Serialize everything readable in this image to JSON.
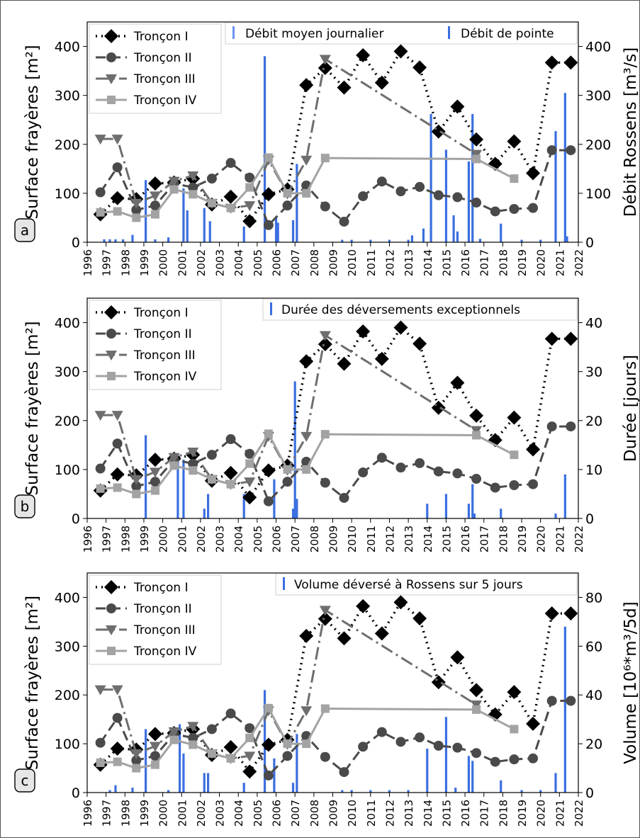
{
  "common": {
    "years": [
      "1996",
      "1997",
      "1998",
      "1999",
      "2000",
      "2001",
      "2002",
      "2003",
      "2004",
      "2005",
      "2006",
      "2007",
      "2008",
      "2009",
      "2010",
      "2011",
      "2012",
      "2013",
      "2014",
      "2015",
      "2016",
      "2017",
      "2018",
      "2019",
      "2020",
      "2021",
      "2022"
    ],
    "left_ylabel": "Surface frayères [m²]",
    "left_yticks": [
      "0",
      "100",
      "200",
      "300",
      "400"
    ],
    "series_names": [
      "Tronçon I",
      "Tronçon II",
      "Tronçon III",
      "Tronçon IV"
    ]
  },
  "chart_data": [
    {
      "type": "line",
      "panel_label": "a",
      "title": "",
      "xlabel": "",
      "ylabel": "Surface frayères [m²]",
      "ylim": [
        0,
        450
      ],
      "xlim": [
        1996,
        2022
      ],
      "y2label": "Débit Rossens [m³/s]",
      "y2lim": [
        0,
        450
      ],
      "y2ticks": [
        "0",
        "100",
        "200",
        "300",
        "400"
      ],
      "bar_legend": [
        "Débit moyen journalier",
        "Débit de pointe"
      ],
      "series": [
        {
          "name": "Tronçon I",
          "x": [
            1996.7,
            1997.6,
            1998.6,
            1999.6,
            2000.6,
            2001.6,
            2002.6,
            2003.6,
            2004.6,
            2005.6,
            2006.6,
            2007.6,
            2008.6,
            2009.6,
            2010.6,
            2011.6,
            2012.6,
            2013.6,
            2014.6,
            2015.6,
            2016.6,
            2017.6,
            2018.6,
            2019.6,
            2020.6,
            2021.6
          ],
          "y": [
            57,
            90,
            88,
            120,
            122,
            130,
            77,
            93,
            43,
            98,
            108,
            321,
            356,
            316,
            382,
            326,
            390,
            357,
            226,
            277,
            210,
            160,
            206,
            141,
            367,
            367
          ]
        },
        {
          "name": "Tronçon II",
          "x": [
            1996.7,
            1997.6,
            1998.6,
            1999.6,
            2000.6,
            2001.6,
            2002.6,
            2003.6,
            2004.6,
            2005.6,
            2006.6,
            2007.6,
            2008.6,
            2009.6,
            2010.6,
            2011.6,
            2012.6,
            2013.6,
            2014.6,
            2015.6,
            2016.6,
            2017.6,
            2018.6,
            2019.6,
            2020.6,
            2021.6
          ],
          "y": [
            102,
            153,
            66,
            75,
            120,
            112,
            130,
            162,
            132,
            35,
            75,
            116,
            73,
            42,
            94,
            124,
            104,
            113,
            96,
            92,
            81,
            63,
            68,
            70,
            188,
            188
          ]
        },
        {
          "name": "Tronçon III",
          "x": [
            1996.7,
            1997.6,
            1998.6,
            1999.6,
            2000.6,
            2001.6,
            2002.6,
            2003.6,
            2004.6,
            2005.6,
            2006.6,
            2007.6,
            2008.6,
            2016.6
          ],
          "y": [
            211,
            211,
            80,
            95,
            125,
            136,
            80,
            70,
            75,
            168,
            99,
            168,
            374,
            180
          ]
        },
        {
          "name": "Tronçon IV",
          "x": [
            1996.7,
            1997.6,
            1998.6,
            1999.6,
            2000.6,
            2001.6,
            2002.6,
            2003.6,
            2004.6,
            2005.6,
            2006.6,
            2007.6,
            2008.6,
            2016.6,
            2018.6
          ],
          "y": [
            61,
            63,
            50,
            57,
            108,
            98,
            80,
            70,
            112,
            173,
            100,
            100,
            172,
            170,
            130
          ]
        }
      ],
      "bars": [
        {
          "x": 1996.9,
          "y": 6
        },
        {
          "x": 1997.2,
          "y": 6
        },
        {
          "x": 1997.5,
          "y": 6
        },
        {
          "x": 1997.9,
          "y": 6
        },
        {
          "x": 1998.4,
          "y": 15
        },
        {
          "x": 1999.1,
          "y": 127
        },
        {
          "x": 1999.6,
          "y": 6
        },
        {
          "x": 2000.3,
          "y": 10
        },
        {
          "x": 2001.1,
          "y": 110
        },
        {
          "x": 2001.3,
          "y": 65
        },
        {
          "x": 2002.2,
          "y": 70
        },
        {
          "x": 2002.5,
          "y": 43
        },
        {
          "x": 2004.3,
          "y": 32
        },
        {
          "x": 2005.4,
          "y": 380
        },
        {
          "x": 2006.0,
          "y": 50
        },
        {
          "x": 2006.1,
          "y": 40
        },
        {
          "x": 2006.9,
          "y": 45
        },
        {
          "x": 2007.1,
          "y": 160
        },
        {
          "x": 2009.5,
          "y": 5
        },
        {
          "x": 2010.0,
          "y": 5
        },
        {
          "x": 2011.0,
          "y": 5
        },
        {
          "x": 2012.0,
          "y": 5
        },
        {
          "x": 2013.0,
          "y": 5
        },
        {
          "x": 2013.2,
          "y": 14
        },
        {
          "x": 2013.8,
          "y": 28
        },
        {
          "x": 2014.2,
          "y": 262
        },
        {
          "x": 2015.0,
          "y": 189
        },
        {
          "x": 2015.4,
          "y": 55
        },
        {
          "x": 2015.6,
          "y": 22
        },
        {
          "x": 2016.2,
          "y": 165
        },
        {
          "x": 2016.4,
          "y": 262
        },
        {
          "x": 2016.8,
          "y": 7
        },
        {
          "x": 2017.9,
          "y": 38
        },
        {
          "x": 2019.0,
          "y": 5
        },
        {
          "x": 2020.0,
          "y": 5
        },
        {
          "x": 2020.8,
          "y": 227
        },
        {
          "x": 2021.3,
          "y": 305
        },
        {
          "x": 2021.4,
          "y": 12
        }
      ]
    },
    {
      "type": "line",
      "panel_label": "b",
      "title": "",
      "xlabel": "",
      "ylabel": "Surface frayères [m²]",
      "ylim": [
        0,
        450
      ],
      "xlim": [
        1996,
        2022
      ],
      "y2label": "Durée [jours]",
      "y2lim": [
        0,
        45
      ],
      "y2ticks": [
        "0",
        "10",
        "20",
        "30",
        "40"
      ],
      "bar_legend": [
        "Durée des déversements exceptionnels"
      ],
      "series": [
        {
          "name": "Tronçon I",
          "x": [
            1996.7,
            1997.6,
            1998.6,
            1999.6,
            2000.6,
            2001.6,
            2002.6,
            2003.6,
            2004.6,
            2005.6,
            2006.6,
            2007.6,
            2008.6,
            2009.6,
            2010.6,
            2011.6,
            2012.6,
            2013.6,
            2014.6,
            2015.6,
            2016.6,
            2017.6,
            2018.6,
            2019.6,
            2020.6,
            2021.6
          ],
          "y": [
            57,
            90,
            88,
            120,
            122,
            130,
            77,
            93,
            43,
            98,
            108,
            321,
            356,
            316,
            382,
            326,
            390,
            357,
            226,
            277,
            210,
            160,
            206,
            141,
            367,
            367
          ]
        },
        {
          "name": "Tronçon II",
          "x": [
            1996.7,
            1997.6,
            1998.6,
            1999.6,
            2000.6,
            2001.6,
            2002.6,
            2003.6,
            2004.6,
            2005.6,
            2006.6,
            2007.6,
            2008.6,
            2009.6,
            2010.6,
            2011.6,
            2012.6,
            2013.6,
            2014.6,
            2015.6,
            2016.6,
            2017.6,
            2018.6,
            2019.6,
            2020.6,
            2021.6
          ],
          "y": [
            102,
            153,
            66,
            75,
            120,
            112,
            130,
            162,
            132,
            35,
            75,
            116,
            73,
            42,
            94,
            124,
            104,
            113,
            96,
            92,
            81,
            63,
            68,
            70,
            188,
            188
          ]
        },
        {
          "name": "Tronçon III",
          "x": [
            1996.7,
            1997.6,
            1998.6,
            1999.6,
            2000.6,
            2001.6,
            2002.6,
            2003.6,
            2004.6,
            2005.6,
            2006.6,
            2007.6,
            2008.6,
            2016.6
          ],
          "y": [
            211,
            211,
            80,
            95,
            125,
            136,
            80,
            70,
            75,
            168,
            99,
            168,
            374,
            180
          ]
        },
        {
          "name": "Tronçon IV",
          "x": [
            1996.7,
            1997.6,
            1998.6,
            1999.6,
            2000.6,
            2001.6,
            2002.6,
            2003.6,
            2004.6,
            2005.6,
            2006.6,
            2007.6,
            2008.6,
            2016.6,
            2018.6
          ],
          "y": [
            61,
            63,
            50,
            57,
            108,
            98,
            80,
            70,
            112,
            173,
            100,
            100,
            172,
            170,
            130
          ]
        }
      ],
      "bars": [
        {
          "x": 1999.1,
          "y": 17
        },
        {
          "x": 2000.8,
          "y": 13
        },
        {
          "x": 2001.1,
          "y": 12
        },
        {
          "x": 2002.2,
          "y": 2
        },
        {
          "x": 2002.4,
          "y": 5
        },
        {
          "x": 2004.3,
          "y": 5
        },
        {
          "x": 2005.9,
          "y": 8
        },
        {
          "x": 2006.9,
          "y": 2
        },
        {
          "x": 2007.0,
          "y": 28
        },
        {
          "x": 2007.1,
          "y": 4
        },
        {
          "x": 2014.0,
          "y": 3
        },
        {
          "x": 2015.0,
          "y": 5
        },
        {
          "x": 2016.2,
          "y": 3
        },
        {
          "x": 2016.4,
          "y": 7
        },
        {
          "x": 2016.5,
          "y": 1
        },
        {
          "x": 2017.9,
          "y": 2
        },
        {
          "x": 2020.8,
          "y": 1
        },
        {
          "x": 2021.3,
          "y": 9
        }
      ]
    },
    {
      "type": "line",
      "panel_label": "c",
      "title": "",
      "xlabel": "",
      "ylabel": "Surface frayères [m²]",
      "ylim": [
        0,
        450
      ],
      "xlim": [
        1996,
        2022
      ],
      "y2label": "Volume [10⁶*m³/5d]",
      "y2lim": [
        0,
        90
      ],
      "y2ticks": [
        "0",
        "20",
        "40",
        "60",
        "80"
      ],
      "bar_legend": [
        "Volume déversé à Rossens sur 5 jours"
      ],
      "series": [
        {
          "name": "Tronçon I",
          "x": [
            1996.7,
            1997.6,
            1998.6,
            1999.6,
            2000.6,
            2001.6,
            2002.6,
            2003.6,
            2004.6,
            2005.6,
            2006.6,
            2007.6,
            2008.6,
            2009.6,
            2010.6,
            2011.6,
            2012.6,
            2013.6,
            2014.6,
            2015.6,
            2016.6,
            2017.6,
            2018.6,
            2019.6,
            2020.6,
            2021.6
          ],
          "y": [
            57,
            90,
            88,
            120,
            122,
            130,
            77,
            93,
            43,
            98,
            108,
            321,
            356,
            316,
            382,
            326,
            390,
            357,
            226,
            277,
            210,
            160,
            206,
            141,
            367,
            367
          ]
        },
        {
          "name": "Tronçon II",
          "x": [
            1996.7,
            1997.6,
            1998.6,
            1999.6,
            2000.6,
            2001.6,
            2002.6,
            2003.6,
            2004.6,
            2005.6,
            2006.6,
            2007.6,
            2008.6,
            2009.6,
            2010.6,
            2011.6,
            2012.6,
            2013.6,
            2014.6,
            2015.6,
            2016.6,
            2017.6,
            2018.6,
            2019.6,
            2020.6,
            2021.6
          ],
          "y": [
            102,
            153,
            66,
            75,
            120,
            112,
            130,
            162,
            132,
            35,
            75,
            116,
            73,
            42,
            94,
            124,
            104,
            113,
            96,
            92,
            81,
            63,
            68,
            70,
            188,
            188
          ]
        },
        {
          "name": "Tronçon III",
          "x": [
            1996.7,
            1997.6,
            1998.6,
            1999.6,
            2000.6,
            2001.6,
            2002.6,
            2003.6,
            2004.6,
            2005.6,
            2006.6,
            2007.6,
            2008.6,
            2016.6
          ],
          "y": [
            211,
            211,
            80,
            95,
            125,
            136,
            80,
            70,
            75,
            168,
            99,
            168,
            374,
            180
          ]
        },
        {
          "name": "Tronçon IV",
          "x": [
            1996.7,
            1997.6,
            1998.6,
            1999.6,
            2000.6,
            2001.6,
            2002.6,
            2003.6,
            2004.6,
            2005.6,
            2006.6,
            2007.6,
            2008.6,
            2016.6,
            2018.6
          ],
          "y": [
            61,
            63,
            50,
            57,
            108,
            98,
            80,
            70,
            112,
            173,
            100,
            100,
            172,
            170,
            130
          ]
        }
      ],
      "bars": [
        {
          "x": 1997.2,
          "y": 1
        },
        {
          "x": 1997.5,
          "y": 3
        },
        {
          "x": 1998.4,
          "y": 2
        },
        {
          "x": 1999.1,
          "y": 26
        },
        {
          "x": 2000.3,
          "y": 1
        },
        {
          "x": 2000.9,
          "y": 28
        },
        {
          "x": 2001.1,
          "y": 16
        },
        {
          "x": 2002.2,
          "y": 8
        },
        {
          "x": 2002.4,
          "y": 8
        },
        {
          "x": 2004.3,
          "y": 4
        },
        {
          "x": 2005.4,
          "y": 42
        },
        {
          "x": 2005.9,
          "y": 14
        },
        {
          "x": 2006.9,
          "y": 4
        },
        {
          "x": 2007.1,
          "y": 24
        },
        {
          "x": 2009.5,
          "y": 1
        },
        {
          "x": 2010.0,
          "y": 1
        },
        {
          "x": 2011.0,
          "y": 1
        },
        {
          "x": 2012.0,
          "y": 1
        },
        {
          "x": 2013.0,
          "y": 1
        },
        {
          "x": 2014.0,
          "y": 18
        },
        {
          "x": 2015.0,
          "y": 31
        },
        {
          "x": 2015.5,
          "y": 2
        },
        {
          "x": 2016.2,
          "y": 15
        },
        {
          "x": 2016.4,
          "y": 13
        },
        {
          "x": 2017.9,
          "y": 5
        },
        {
          "x": 2019.0,
          "y": 1
        },
        {
          "x": 2020.0,
          "y": 1
        },
        {
          "x": 2020.8,
          "y": 8
        },
        {
          "x": 2021.3,
          "y": 68
        }
      ]
    }
  ]
}
